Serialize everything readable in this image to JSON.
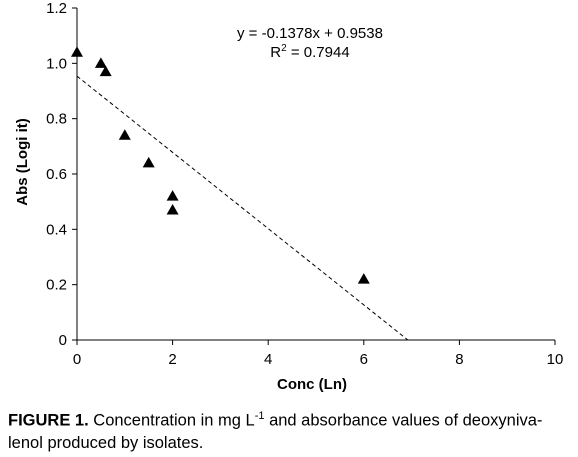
{
  "chart_data": {
    "type": "scatter",
    "title": "",
    "xlabel": "Conc (Ln)",
    "ylabel": "Abs (Logi it)",
    "xlim": [
      0,
      10
    ],
    "ylim": [
      0,
      1.2
    ],
    "xticks": [
      "0",
      "2",
      "4",
      "6",
      "8",
      "10"
    ],
    "yticks": [
      "0",
      "0.2",
      "0.4",
      "0.6",
      "0.8",
      "1.0",
      "1.2"
    ],
    "grid": false,
    "marker": "triangle",
    "marker_color": "#000000",
    "points": [
      {
        "x": 0.0,
        "y": 1.04
      },
      {
        "x": 0.5,
        "y": 1.0
      },
      {
        "x": 0.6,
        "y": 0.97
      },
      {
        "x": 1.0,
        "y": 0.74
      },
      {
        "x": 1.5,
        "y": 0.64
      },
      {
        "x": 2.0,
        "y": 0.52
      },
      {
        "x": 2.0,
        "y": 0.47
      },
      {
        "x": 6.0,
        "y": 0.22
      }
    ],
    "trendline": {
      "type": "linear",
      "slope": -0.1378,
      "intercept": 0.9538,
      "style": "dashed",
      "equation_text": "y = -0.1378x + 0.9538",
      "r2_prefix": "R",
      "r2_sup": "2",
      "r2_suffix": " = 0.7944"
    }
  },
  "caption": {
    "label": "FIGURE 1.",
    "text_before_sup": " Concentration in mg L",
    "sup": "-1",
    "text_after_sup": " and absorbance values of deoxyniva-lenol produced by isolates."
  }
}
